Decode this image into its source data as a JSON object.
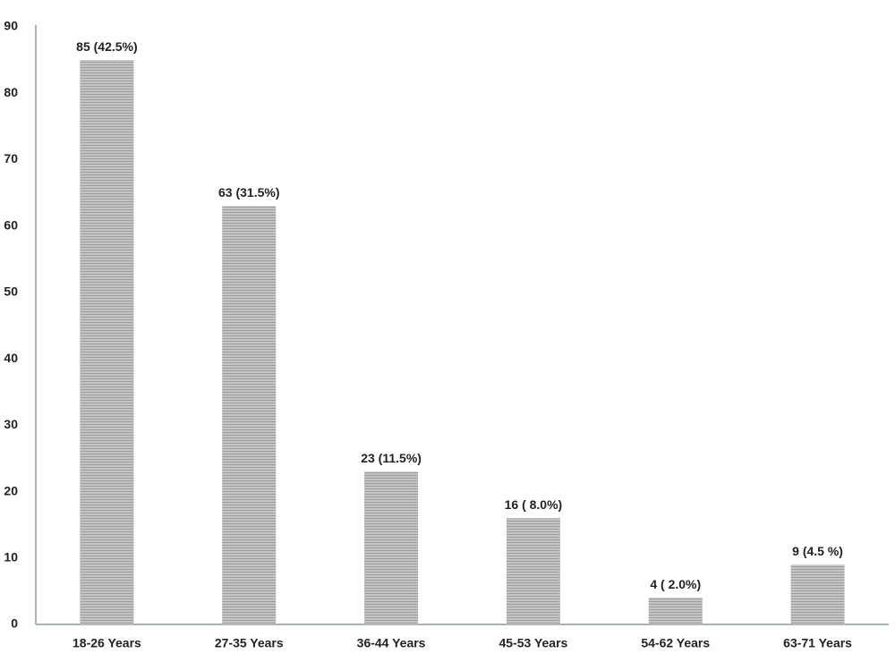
{
  "chart_data": {
    "type": "bar",
    "categories": [
      "18-26 Years",
      "27-35 Years",
      "36-44 Years",
      "45-53 Years",
      "54-62 Years",
      "63-71 Years"
    ],
    "values": [
      85,
      63,
      23,
      16,
      4,
      9
    ],
    "value_labels": [
      "85 (42.5%)",
      "63 (31.5%)",
      "23 (11.5%)",
      "16 ( 8.0%)",
      "4 ( 2.0%)",
      "9 (4.5 %)"
    ],
    "color": "#b3b3b3",
    "ylim": [
      0,
      90
    ],
    "yticks": [
      0,
      10,
      20,
      30,
      40,
      50,
      60,
      70,
      80,
      90
    ],
    "grid": false
  }
}
